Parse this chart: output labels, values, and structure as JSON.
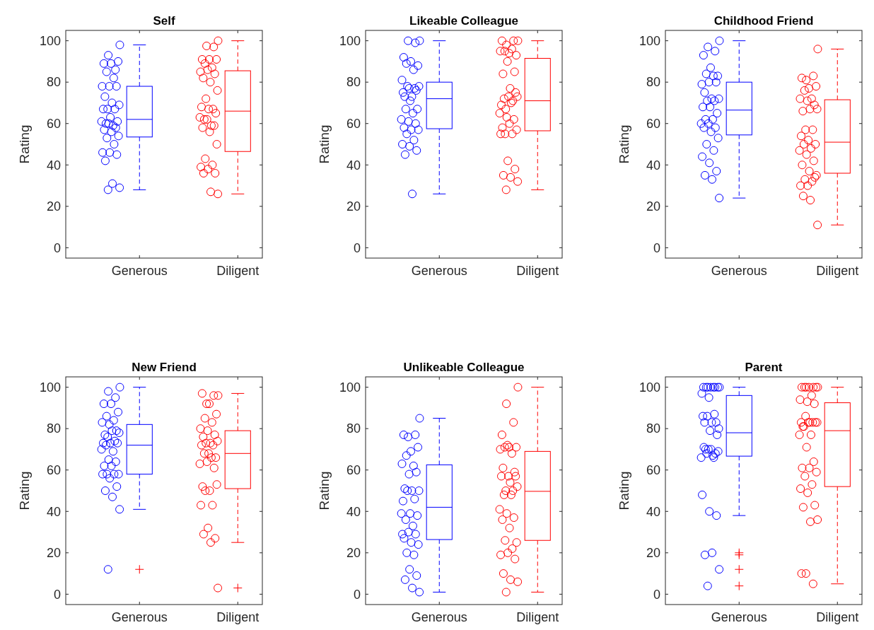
{
  "chart_data": [
    {
      "type": "box",
      "title": "Self",
      "ylabel": "Rating",
      "categories": [
        "Generous",
        "Diligent"
      ],
      "ylim": [
        -5,
        105
      ],
      "yticks": [
        0,
        20,
        40,
        60,
        80,
        100
      ],
      "series": [
        {
          "type": "scatter",
          "color": "#0000ff",
          "marker": "circle",
          "x": [
            "Generous",
            "Generous",
            "Generous",
            "Generous",
            "Generous",
            "Generous",
            "Generous",
            "Generous",
            "Generous",
            "Generous",
            "Generous",
            "Generous",
            "Generous",
            "Generous",
            "Generous",
            "Generous",
            "Generous",
            "Generous",
            "Generous",
            "Generous",
            "Generous",
            "Generous",
            "Generous",
            "Generous",
            "Generous",
            "Generous",
            "Generous",
            "Generous",
            "Generous",
            "Generous",
            "Generous",
            "Generous",
            "Generous",
            "Generous",
            "Generous",
            "Generous"
          ],
          "values": [
            98,
            93,
            86,
            89,
            89,
            90,
            85,
            82,
            78,
            78,
            78,
            73,
            70,
            69,
            67,
            67,
            67,
            63,
            61,
            60,
            59,
            61,
            60,
            58,
            57,
            56,
            54,
            53,
            50,
            46,
            46,
            45,
            42,
            31,
            29,
            28
          ]
        },
        {
          "color": "#0000ff",
          "line_style": "dashed",
          "boxes": [
            {
              "low": 28,
              "q1": 53.5,
              "median": 62,
              "q3": 78,
              "high": 98
            },
            null
          ]
        },
        {
          "type": "scatter",
          "color": "#ff0000",
          "marker": "circle",
          "x": [
            "Diligent",
            "Diligent",
            "Diligent",
            "Diligent",
            "Diligent",
            "Diligent",
            "Diligent",
            "Diligent",
            "Diligent",
            "Diligent",
            "Diligent",
            "Diligent",
            "Diligent",
            "Diligent",
            "Diligent",
            "Diligent",
            "Diligent",
            "Diligent",
            "Diligent",
            "Diligent",
            "Diligent",
            "Diligent",
            "Diligent",
            "Diligent",
            "Diligent",
            "Diligent",
            "Diligent",
            "Diligent",
            "Diligent",
            "Diligent",
            "Diligent",
            "Diligent",
            "Diligent",
            "Diligent",
            "Diligent"
          ],
          "values": [
            100,
            97.5,
            97,
            91,
            91,
            91,
            89,
            87,
            85,
            86,
            84,
            82,
            80,
            76,
            72,
            67,
            68,
            67,
            65,
            62,
            59,
            63,
            62,
            59,
            58,
            56,
            50,
            43,
            40,
            39,
            38,
            36,
            36,
            27,
            26
          ]
        },
        {
          "color": "#ff0000",
          "line_style": "dashed",
          "boxes": [
            null,
            {
              "low": 26,
              "q1": 46.5,
              "median": 66,
              "q3": 85.5,
              "high": 100
            }
          ]
        }
      ]
    },
    {
      "type": "box",
      "title": "Likeable Colleague",
      "ylabel": "Rating",
      "categories": [
        "Generous",
        "Diligent"
      ],
      "ylim": [
        -5,
        105
      ],
      "yticks": [
        0,
        20,
        40,
        60,
        80,
        100
      ],
      "series": [
        {
          "type": "scatter",
          "color": "#0000ff",
          "marker": "circle",
          "x": [
            "Generous",
            "Generous",
            "Generous",
            "Generous",
            "Generous",
            "Generous",
            "Generous",
            "Generous",
            "Generous",
            "Generous",
            "Generous",
            "Generous",
            "Generous",
            "Generous",
            "Generous",
            "Generous",
            "Generous",
            "Generous",
            "Generous",
            "Generous",
            "Generous",
            "Generous",
            "Generous",
            "Generous",
            "Generous",
            "Generous",
            "Generous",
            "Generous",
            "Generous",
            "Generous",
            "Generous",
            "Generous",
            "Generous",
            "Generous"
          ],
          "values": [
            100,
            100,
            99,
            92,
            90,
            88,
            89,
            86,
            81,
            77,
            76,
            73,
            73,
            78,
            78,
            77,
            75,
            71,
            67,
            67,
            65,
            62,
            61,
            60,
            58,
            57,
            57,
            55,
            52,
            50,
            49,
            47,
            45,
            26
          ]
        },
        {
          "color": "#0000ff",
          "line_style": "dashed",
          "boxes": [
            {
              "low": 26,
              "q1": 57.5,
              "median": 72,
              "q3": 80,
              "high": 100
            },
            null
          ]
        },
        {
          "type": "scatter",
          "color": "#ff0000",
          "marker": "circle",
          "x": [
            "Diligent",
            "Diligent",
            "Diligent",
            "Diligent",
            "Diligent",
            "Diligent",
            "Diligent",
            "Diligent",
            "Diligent",
            "Diligent",
            "Diligent",
            "Diligent",
            "Diligent",
            "Diligent",
            "Diligent",
            "Diligent",
            "Diligent",
            "Diligent",
            "Diligent",
            "Diligent",
            "Diligent",
            "Diligent",
            "Diligent",
            "Diligent",
            "Diligent",
            "Diligent",
            "Diligent",
            "Diligent",
            "Diligent",
            "Diligent",
            "Diligent",
            "Diligent",
            "Diligent",
            "Diligent",
            "Diligent",
            "Diligent"
          ],
          "values": [
            100,
            98,
            100,
            100,
            94,
            93,
            95,
            96,
            95,
            90,
            85,
            84,
            77,
            73,
            67,
            71,
            69,
            73,
            75,
            72,
            70,
            65,
            63,
            62,
            58,
            60,
            57,
            55,
            55,
            55,
            42,
            38,
            35,
            34,
            32,
            28
          ]
        },
        {
          "color": "#ff0000",
          "line_style": "dashed",
          "boxes": [
            null,
            {
              "low": 28,
              "q1": 56.5,
              "median": 71,
              "q3": 91.5,
              "high": 100
            }
          ]
        }
      ]
    },
    {
      "type": "box",
      "title": "Childhood Friend",
      "ylabel": "Rating",
      "categories": [
        "Generous",
        "Diligent"
      ],
      "ylim": [
        -5,
        105
      ],
      "yticks": [
        0,
        20,
        40,
        60,
        80,
        100
      ],
      "series": [
        {
          "type": "scatter",
          "color": "#0000ff",
          "marker": "circle",
          "x": [
            "Generous",
            "Generous",
            "Generous",
            "Generous",
            "Generous",
            "Generous",
            "Generous",
            "Generous",
            "Generous",
            "Generous",
            "Generous",
            "Generous",
            "Generous",
            "Generous",
            "Generous",
            "Generous",
            "Generous",
            "Generous",
            "Generous",
            "Generous",
            "Generous",
            "Generous",
            "Generous",
            "Generous",
            "Generous",
            "Generous",
            "Generous",
            "Generous",
            "Generous",
            "Generous",
            "Generous",
            "Generous",
            "Generous",
            "Generous",
            "Generous"
          ],
          "values": [
            100,
            97,
            95,
            93,
            87,
            83,
            84,
            83,
            79,
            80,
            80,
            75,
            72,
            72,
            71,
            71,
            68,
            68,
            65,
            62,
            62,
            60,
            60,
            58,
            58,
            56,
            53,
            50,
            47,
            44,
            41,
            37,
            35,
            33,
            24
          ]
        },
        {
          "color": "#0000ff",
          "line_style": "dashed",
          "boxes": [
            {
              "low": 24,
              "q1": 54.5,
              "median": 66.5,
              "q3": 80,
              "high": 100
            },
            null
          ]
        },
        {
          "type": "scatter",
          "color": "#ff0000",
          "marker": "circle",
          "x": [
            "Diligent",
            "Diligent",
            "Diligent",
            "Diligent",
            "Diligent",
            "Diligent",
            "Diligent",
            "Diligent",
            "Diligent",
            "Diligent",
            "Diligent",
            "Diligent",
            "Diligent",
            "Diligent",
            "Diligent",
            "Diligent",
            "Diligent",
            "Diligent",
            "Diligent",
            "Diligent",
            "Diligent",
            "Diligent",
            "Diligent",
            "Diligent",
            "Diligent",
            "Diligent",
            "Diligent",
            "Diligent",
            "Diligent",
            "Diligent",
            "Diligent",
            "Diligent",
            "Diligent",
            "Diligent",
            "Diligent"
          ],
          "values": [
            96,
            81,
            83,
            82,
            77,
            78,
            76,
            72,
            72,
            71,
            69,
            66,
            67,
            67,
            57,
            57,
            54,
            52,
            50,
            50,
            48,
            47,
            45,
            42,
            40,
            37,
            35,
            33,
            32,
            30,
            30,
            34,
            25,
            23,
            11
          ]
        },
        {
          "color": "#ff0000",
          "line_style": "dashed",
          "boxes": [
            null,
            {
              "low": 11,
              "q1": 36,
              "median": 51,
              "q3": 71.5,
              "high": 96
            }
          ]
        }
      ]
    },
    {
      "type": "box",
      "title": "New Friend",
      "ylabel": "Rating",
      "categories": [
        "Generous",
        "Diligent"
      ],
      "ylim": [
        -5,
        105
      ],
      "yticks": [
        0,
        20,
        40,
        60,
        80,
        100
      ],
      "series": [
        {
          "type": "scatter",
          "color": "#0000ff",
          "marker": "circle",
          "x": [
            "Generous",
            "Generous",
            "Generous",
            "Generous",
            "Generous",
            "Generous",
            "Generous",
            "Generous",
            "Generous",
            "Generous",
            "Generous",
            "Generous",
            "Generous",
            "Generous",
            "Generous",
            "Generous",
            "Generous",
            "Generous",
            "Generous",
            "Generous",
            "Generous",
            "Generous",
            "Generous",
            "Generous",
            "Generous",
            "Generous",
            "Generous",
            "Generous",
            "Generous",
            "Generous",
            "Generous",
            "Generous",
            "Generous",
            "Generous",
            "Generous",
            "Generous"
          ],
          "values": [
            100,
            98,
            95,
            92,
            92,
            88,
            86,
            84,
            83,
            82,
            79,
            77,
            79,
            78,
            76,
            74,
            73,
            73,
            73,
            72,
            69,
            70,
            65,
            64,
            62,
            62,
            58,
            58,
            58,
            58,
            56,
            52,
            50,
            47,
            41,
            12
          ]
        },
        {
          "color": "#0000ff",
          "line_style": "dashed",
          "boxes": [
            {
              "low": 41,
              "q1": 58,
              "median": 72,
              "q3": 82,
              "high": 100,
              "outliers": [
                12
              ]
            },
            null
          ]
        },
        {
          "type": "scatter",
          "color": "#ff0000",
          "marker": "circle",
          "x": [
            "Diligent",
            "Diligent",
            "Diligent",
            "Diligent",
            "Diligent",
            "Diligent",
            "Diligent",
            "Diligent",
            "Diligent",
            "Diligent",
            "Diligent",
            "Diligent",
            "Diligent",
            "Diligent",
            "Diligent",
            "Diligent",
            "Diligent",
            "Diligent",
            "Diligent",
            "Diligent",
            "Diligent",
            "Diligent",
            "Diligent",
            "Diligent",
            "Diligent",
            "Diligent",
            "Diligent",
            "Diligent",
            "Diligent",
            "Diligent",
            "Diligent",
            "Diligent",
            "Diligent",
            "Diligent",
            "Diligent"
          ],
          "values": [
            96,
            92,
            96,
            97,
            92,
            87,
            85,
            83,
            80,
            79,
            77,
            76,
            73,
            74,
            73,
            72,
            72,
            68,
            66,
            68,
            66,
            63,
            64,
            61,
            52,
            50,
            53,
            50,
            43,
            43,
            32,
            27,
            29,
            25,
            3
          ]
        },
        {
          "color": "#ff0000",
          "line_style": "dashed",
          "boxes": [
            null,
            {
              "low": 25,
              "q1": 51,
              "median": 68,
              "q3": 79,
              "high": 97,
              "outliers": [
                3
              ]
            }
          ]
        }
      ]
    },
    {
      "type": "box",
      "title": "Unlikeable Colleague",
      "ylabel": "Rating",
      "categories": [
        "Generous",
        "Diligent"
      ],
      "ylim": [
        -5,
        105
      ],
      "yticks": [
        0,
        20,
        40,
        60,
        80,
        100
      ],
      "series": [
        {
          "type": "scatter",
          "color": "#0000ff",
          "marker": "circle",
          "x": [
            "Generous",
            "Generous",
            "Generous",
            "Generous",
            "Generous",
            "Generous",
            "Generous",
            "Generous",
            "Generous",
            "Generous",
            "Generous",
            "Generous",
            "Generous",
            "Generous",
            "Generous",
            "Generous",
            "Generous",
            "Generous",
            "Generous",
            "Generous",
            "Generous",
            "Generous",
            "Generous",
            "Generous",
            "Generous",
            "Generous",
            "Generous",
            "Generous",
            "Generous",
            "Generous",
            "Generous",
            "Generous",
            "Generous",
            "Generous",
            "Generous"
          ],
          "values": [
            85,
            76,
            77,
            77,
            69,
            71,
            67,
            62,
            63,
            58,
            59,
            51,
            50,
            50,
            50,
            46,
            45,
            39,
            38,
            36,
            33,
            39,
            30,
            29,
            27,
            25,
            24,
            20,
            19,
            29,
            12,
            9,
            7,
            3,
            1
          ]
        },
        {
          "color": "#0000ff",
          "line_style": "dashed",
          "boxes": [
            {
              "low": 1,
              "q1": 26.4,
              "median": 42,
              "q3": 62.5,
              "high": 85
            },
            null
          ]
        },
        {
          "type": "scatter",
          "color": "#ff0000",
          "marker": "circle",
          "x": [
            "Diligent",
            "Diligent",
            "Diligent",
            "Diligent",
            "Diligent",
            "Diligent",
            "Diligent",
            "Diligent",
            "Diligent",
            "Diligent",
            "Diligent",
            "Diligent",
            "Diligent",
            "Diligent",
            "Diligent",
            "Diligent",
            "Diligent",
            "Diligent",
            "Diligent",
            "Diligent",
            "Diligent",
            "Diligent",
            "Diligent",
            "Diligent",
            "Diligent",
            "Diligent",
            "Diligent",
            "Diligent",
            "Diligent",
            "Diligent",
            "Diligent",
            "Diligent",
            "Diligent",
            "Diligent",
            "Diligent",
            "Diligent"
          ],
          "values": [
            100,
            92,
            83,
            77,
            71,
            71,
            71,
            68,
            70,
            72,
            59,
            61,
            54,
            52,
            50,
            50,
            57,
            57,
            57,
            48,
            48,
            41,
            39,
            37,
            36,
            32,
            25,
            26,
            22,
            19,
            20,
            17,
            10,
            7,
            6,
            1
          ]
        },
        {
          "color": "#ff0000",
          "line_style": "dashed",
          "boxes": [
            null,
            {
              "low": 1,
              "q1": 26,
              "median": 49.7,
              "q3": 69,
              "high": 100
            }
          ]
        }
      ]
    },
    {
      "type": "box",
      "title": "Parent",
      "ylabel": "Rating",
      "categories": [
        "Generous",
        "Diligent"
      ],
      "ylim": [
        -5,
        105
      ],
      "yticks": [
        0,
        20,
        40,
        60,
        80,
        100
      ],
      "series": [
        {
          "type": "scatter",
          "color": "#0000ff",
          "marker": "circle",
          "x": [
            "Generous",
            "Generous",
            "Generous",
            "Generous",
            "Generous",
            "Generous",
            "Generous",
            "Generous",
            "Generous",
            "Generous",
            "Generous",
            "Generous",
            "Generous",
            "Generous",
            "Generous",
            "Generous",
            "Generous",
            "Generous",
            "Generous",
            "Generous",
            "Generous",
            "Generous",
            "Generous",
            "Generous",
            "Generous",
            "Generous",
            "Generous",
            "Generous",
            "Generous",
            "Generous",
            "Generous",
            "Generous",
            "Generous",
            "Generous",
            "Generous",
            "Generous"
          ],
          "values": [
            100,
            100,
            100,
            100,
            100,
            100,
            100,
            100,
            97,
            95,
            83,
            83,
            83,
            80,
            86,
            87,
            86,
            79,
            77,
            70,
            67,
            66,
            70,
            68,
            71,
            70,
            69,
            68,
            66,
            48,
            40,
            38,
            19,
            20,
            12,
            4
          ]
        },
        {
          "color": "#0000ff",
          "line_style": "dashed",
          "boxes": [
            {
              "low": 38,
              "q1": 66.7,
              "median": 78,
              "q3": 96,
              "high": 100,
              "outliers": [
                20,
                19,
                12,
                4
              ]
            },
            null
          ]
        },
        {
          "type": "scatter",
          "color": "#ff0000",
          "marker": "circle",
          "x": [
            "Diligent",
            "Diligent",
            "Diligent",
            "Diligent",
            "Diligent",
            "Diligent",
            "Diligent",
            "Diligent",
            "Diligent",
            "Diligent",
            "Diligent",
            "Diligent",
            "Diligent",
            "Diligent",
            "Diligent",
            "Diligent",
            "Diligent",
            "Diligent",
            "Diligent",
            "Diligent",
            "Diligent",
            "Diligent",
            "Diligent",
            "Diligent",
            "Diligent",
            "Diligent",
            "Diligent",
            "Diligent",
            "Diligent",
            "Diligent",
            "Diligent",
            "Diligent",
            "Diligent",
            "Diligent",
            "Diligent",
            "Diligent",
            "Diligent",
            "Diligent"
          ],
          "values": [
            100,
            100,
            100,
            100,
            100,
            100,
            100,
            96,
            94,
            93,
            92,
            81,
            83,
            83,
            86,
            83,
            83,
            83,
            83,
            81,
            77,
            77,
            71,
            64,
            61,
            61,
            59,
            57,
            53,
            51,
            49,
            43,
            42,
            35,
            36,
            10,
            5,
            10
          ]
        },
        {
          "color": "#ff0000",
          "line_style": "dashed",
          "boxes": [
            null,
            {
              "low": 5,
              "q1": 52,
              "median": 79,
              "q3": 92.5,
              "high": 100
            }
          ]
        }
      ]
    }
  ]
}
